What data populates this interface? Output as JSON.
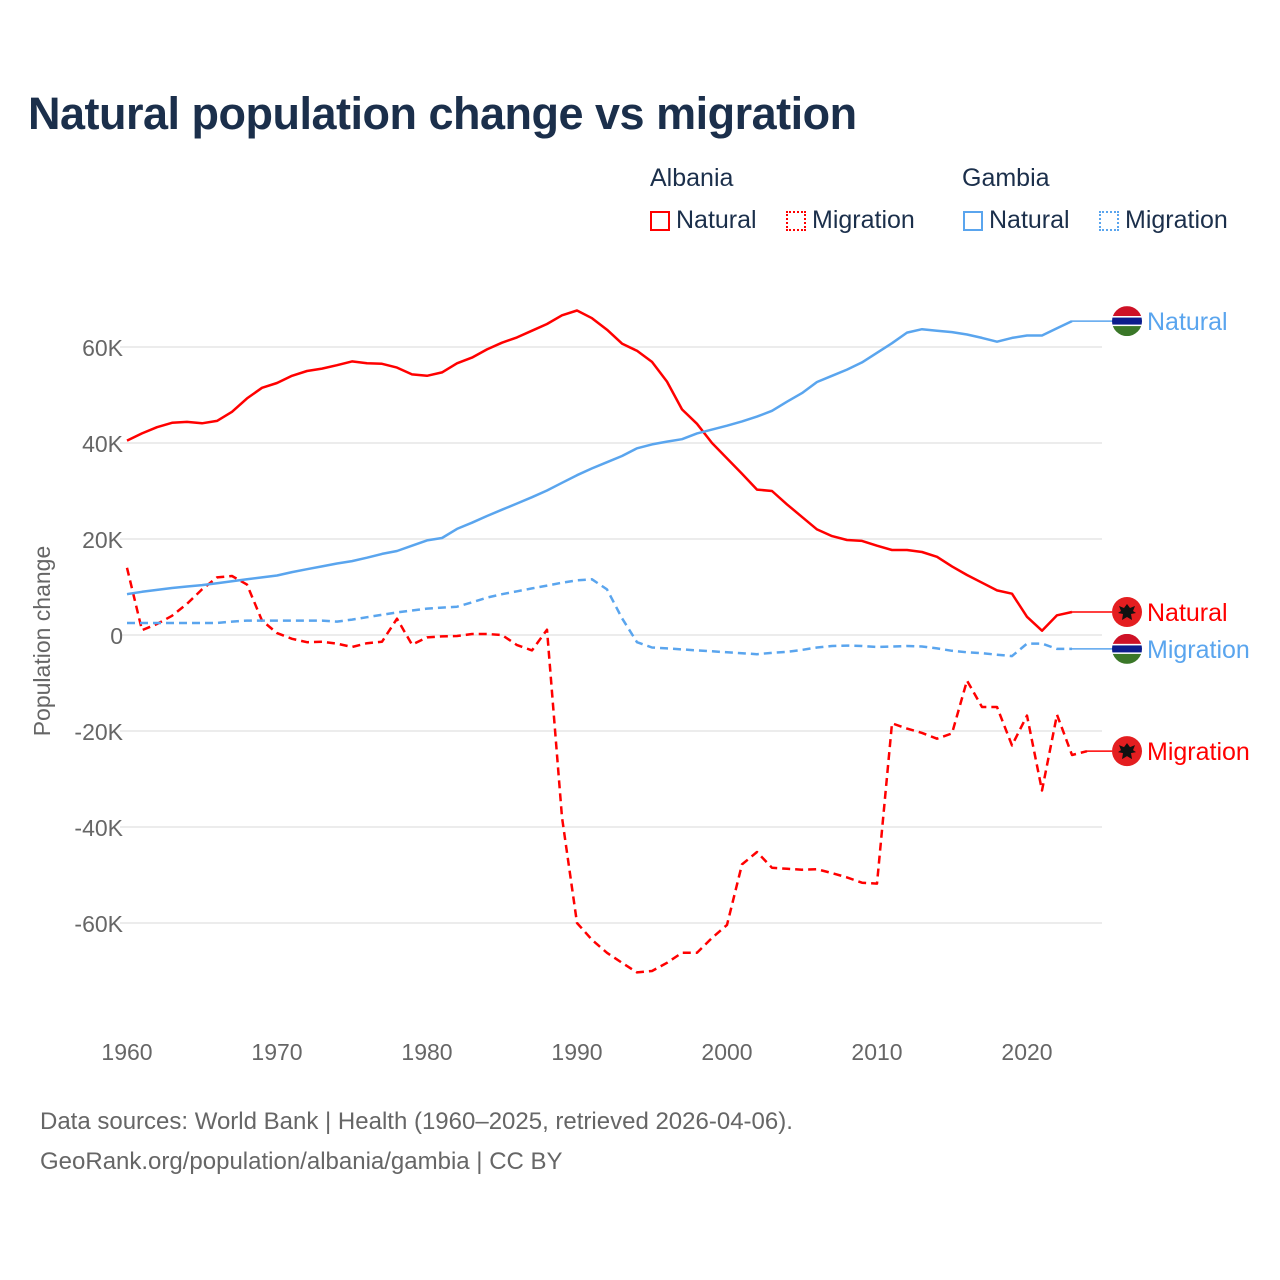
{
  "title": "Natural population change vs migration",
  "legend": {
    "groups": [
      {
        "name": "Albania",
        "items": [
          {
            "label": "Natural",
            "style": "solid",
            "color": "#ff0000"
          },
          {
            "label": "Migration",
            "style": "dotted",
            "color": "#ff0000"
          }
        ]
      },
      {
        "name": "Gambia",
        "items": [
          {
            "label": "Natural",
            "style": "solid",
            "color": "#5aa5ee"
          },
          {
            "label": "Migration",
            "style": "dotted",
            "color": "#5aa5ee"
          }
        ]
      }
    ]
  },
  "source_lines": [
    "Data sources: World Bank | Health (1960–2025, retrieved 2026-04-06).",
    "GeoRank.org/population/albania/gambia | CC BY"
  ],
  "chart_data": {
    "type": "line",
    "title": "Natural population change vs migration",
    "xlabel": "",
    "ylabel": "Population change",
    "xlim": [
      1960,
      2025
    ],
    "ylim": [
      -80000,
      70000
    ],
    "x_ticks": [
      1960,
      1970,
      1980,
      1990,
      2000,
      2010,
      2020
    ],
    "x_tick_labels": [
      "1960",
      "1970",
      "1980",
      "1990",
      "2000",
      "2010",
      "2020"
    ],
    "y_ticks": [
      60000,
      40000,
      20000,
      0,
      -20000,
      -40000,
      -60000
    ],
    "y_tick_labels": [
      "60K",
      "40K",
      "20K",
      "0",
      "-20K",
      "-40K",
      "-60K"
    ],
    "grid": true,
    "x_start": 1960,
    "series": [
      {
        "name": "Albania Natural",
        "end_label": "Natural",
        "country": "Albania",
        "color": "#ff0000",
        "dashed": false,
        "values": [
          40500,
          42000,
          43300,
          44200,
          44400,
          44100,
          44600,
          46500,
          49300,
          51500,
          52500,
          54000,
          55000,
          55500,
          56200,
          57000,
          56600,
          56500,
          55700,
          54300,
          54000,
          54700,
          56600,
          57800,
          59500,
          60900,
          62000,
          63400,
          64800,
          66600,
          67600,
          66000,
          63600,
          60700,
          59200,
          56900,
          52800,
          47000,
          44000,
          40000,
          36800,
          33600,
          30300,
          30000,
          27200,
          24600,
          22000,
          20600,
          19800,
          19600,
          18600,
          17700,
          17700,
          17300,
          16300,
          14300,
          12500,
          10900,
          9300,
          8600,
          3800,
          900,
          4100,
          4800
        ]
      },
      {
        "name": "Albania Migration",
        "end_label": "Migration",
        "country": "Albania",
        "color": "#ff0000",
        "dashed": true,
        "values": [
          14000,
          1000,
          2300,
          4000,
          6500,
          9500,
          12000,
          12300,
          10500,
          3000,
          400,
          -800,
          -1500,
          -1400,
          -1800,
          -2500,
          -1700,
          -1400,
          3400,
          -2000,
          -500,
          -300,
          -200,
          200,
          200,
          0,
          -2100,
          -3200,
          1100,
          -38000,
          -60000,
          -63500,
          -66200,
          -68300,
          -70300,
          -70000,
          -68300,
          -66200,
          -66200,
          -63100,
          -60400,
          -47800,
          -45200,
          -48500,
          -48700,
          -48900,
          -48800,
          -49600,
          -50500,
          -51600,
          -51800,
          -18400,
          -19500,
          -20400,
          -21600,
          -20500,
          -9500,
          -15000,
          -15000,
          -23000,
          -16800,
          -32400,
          -16600,
          -25000,
          -24200
        ]
      },
      {
        "name": "Gambia Natural",
        "end_label": "Natural",
        "country": "Gambia",
        "color": "#5aa5ee",
        "dashed": false,
        "values": [
          8500,
          9000,
          9400,
          9800,
          10100,
          10400,
          10800,
          11200,
          11600,
          12000,
          12400,
          13100,
          13700,
          14300,
          14900,
          15400,
          16100,
          16900,
          17500,
          18600,
          19700,
          20200,
          22100,
          23400,
          24800,
          26100,
          27400,
          28700,
          30100,
          31700,
          33300,
          34700,
          36000,
          37300,
          38900,
          39700,
          40300,
          40800,
          42000,
          42800,
          43600,
          44500,
          45500,
          46700,
          48600,
          50400,
          52700,
          54000,
          55300,
          56800,
          58800,
          60800,
          63000,
          63700,
          63400,
          63100,
          62600,
          61900,
          61100,
          61900,
          62400,
          62400,
          63900,
          65400
        ]
      },
      {
        "name": "Gambia Migration",
        "end_label": "Migration",
        "country": "Gambia",
        "color": "#5aa5ee",
        "dashed": true,
        "values": [
          2500,
          2500,
          2500,
          2500,
          2500,
          2500,
          2500,
          2800,
          3000,
          3000,
          3000,
          3000,
          3000,
          3000,
          2800,
          3200,
          3700,
          4200,
          4700,
          5100,
          5500,
          5700,
          5900,
          6800,
          7800,
          8500,
          9100,
          9700,
          10300,
          10900,
          11400,
          11600,
          9500,
          3500,
          -1500,
          -2600,
          -2800,
          -3000,
          -3200,
          -3400,
          -3600,
          -3800,
          -4000,
          -3700,
          -3500,
          -3100,
          -2600,
          -2300,
          -2200,
          -2300,
          -2500,
          -2400,
          -2300,
          -2400,
          -2800,
          -3300,
          -3600,
          -3800,
          -4100,
          -4400,
          -1800,
          -1800,
          -2900,
          -2900
        ]
      }
    ]
  }
}
